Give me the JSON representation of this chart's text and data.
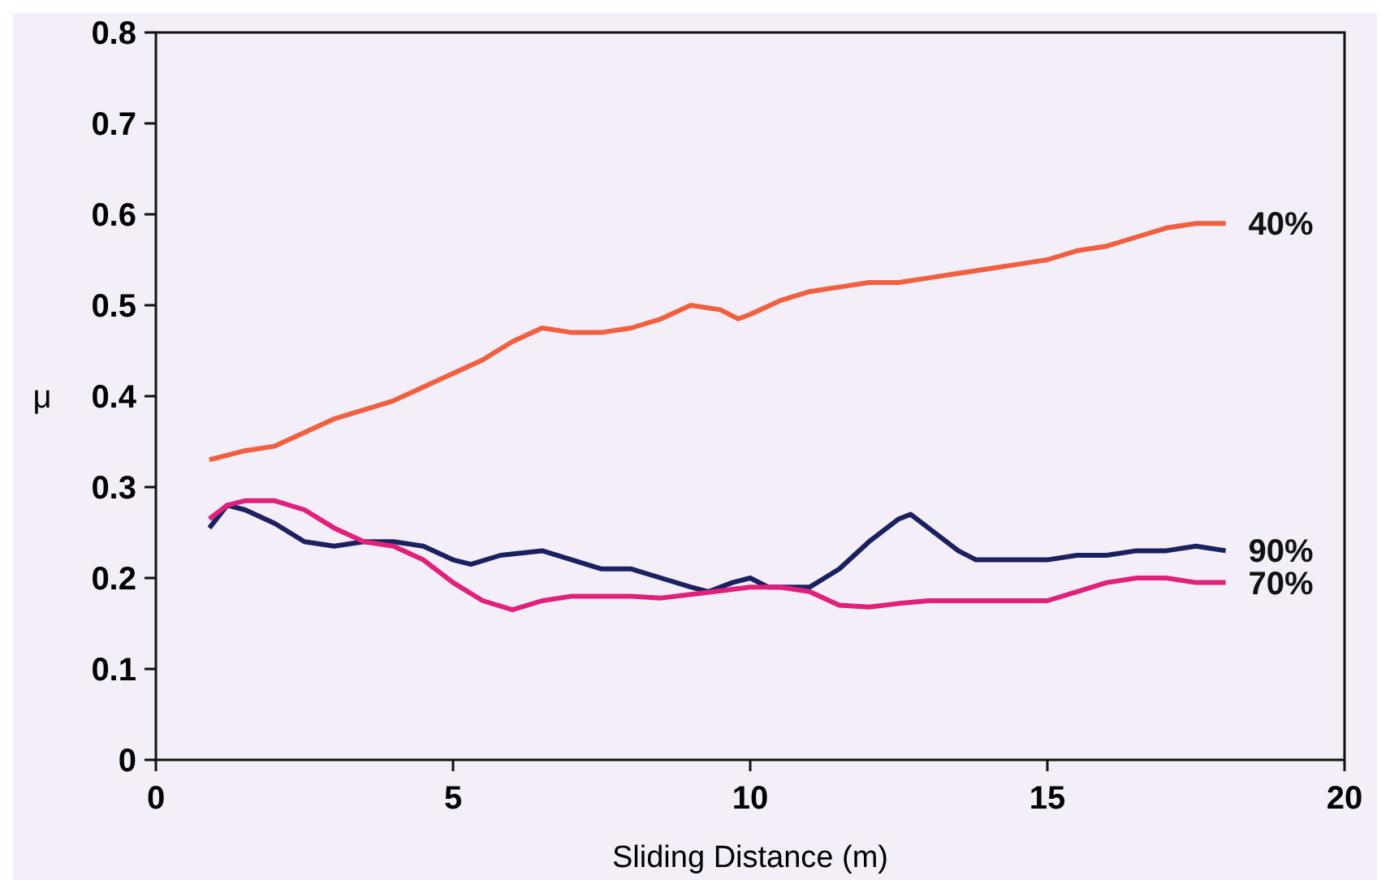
{
  "chart_data": {
    "type": "line",
    "xlabel": "Sliding Distance (m)",
    "ylabel": "μ",
    "xlim": [
      0,
      20
    ],
    "xticks": [
      0,
      5,
      10,
      15,
      20
    ],
    "ylim": [
      0,
      0.8
    ],
    "yticks": [
      0,
      0.1,
      0.2,
      0.3,
      0.4,
      0.5,
      0.6,
      0.7,
      0.8
    ],
    "grid": false,
    "legend": false,
    "marker": "none",
    "line_style": "solid",
    "series": [
      {
        "name": "40%",
        "color": "#f06040",
        "x": [
          0.9,
          1.5,
          2,
          2.5,
          3,
          3.5,
          4,
          4.5,
          5,
          5.5,
          6,
          6.5,
          7,
          7.5,
          8,
          8.5,
          9,
          9.5,
          9.8,
          10,
          10.5,
          11,
          11.5,
          12,
          12.5,
          13,
          13.5,
          14,
          14.5,
          15,
          15.5,
          16,
          16.5,
          17,
          17.5,
          18
        ],
        "values": [
          0.33,
          0.34,
          0.345,
          0.36,
          0.375,
          0.385,
          0.395,
          0.41,
          0.425,
          0.44,
          0.46,
          0.475,
          0.47,
          0.47,
          0.475,
          0.485,
          0.5,
          0.495,
          0.485,
          0.49,
          0.505,
          0.515,
          0.52,
          0.525,
          0.525,
          0.53,
          0.535,
          0.54,
          0.545,
          0.55,
          0.56,
          0.565,
          0.575,
          0.585,
          0.59,
          0.59
        ]
      },
      {
        "name": "90%",
        "color": "#1a2060",
        "x": [
          0.9,
          1.2,
          1.5,
          2,
          2.5,
          3,
          3.5,
          4,
          4.5,
          5,
          5.3,
          5.8,
          6.5,
          7,
          7.5,
          8,
          8.5,
          9,
          9.3,
          9.7,
          10,
          10.3,
          11,
          11.5,
          12,
          12.5,
          12.7,
          13,
          13.5,
          13.8,
          14.5,
          15,
          15.5,
          16,
          16.5,
          17,
          17.5,
          18
        ],
        "values": [
          0.255,
          0.28,
          0.275,
          0.26,
          0.24,
          0.235,
          0.24,
          0.24,
          0.235,
          0.22,
          0.215,
          0.225,
          0.23,
          0.22,
          0.21,
          0.21,
          0.2,
          0.19,
          0.185,
          0.195,
          0.2,
          0.19,
          0.19,
          0.21,
          0.24,
          0.265,
          0.27,
          0.255,
          0.23,
          0.22,
          0.22,
          0.22,
          0.225,
          0.225,
          0.23,
          0.23,
          0.235,
          0.23
        ]
      },
      {
        "name": "70%",
        "color": "#e0207a",
        "x": [
          0.9,
          1.2,
          1.5,
          2,
          2.5,
          3,
          3.5,
          4,
          4.5,
          5,
          5.5,
          6,
          6.5,
          7,
          7.5,
          8,
          8.5,
          9,
          9.5,
          10,
          10.5,
          11,
          11.5,
          12,
          12.5,
          13,
          14,
          15,
          15.5,
          16,
          16.5,
          17,
          17.5,
          18
        ],
        "values": [
          0.265,
          0.28,
          0.285,
          0.285,
          0.275,
          0.255,
          0.24,
          0.235,
          0.22,
          0.195,
          0.175,
          0.165,
          0.175,
          0.18,
          0.18,
          0.18,
          0.178,
          0.182,
          0.186,
          0.19,
          0.19,
          0.185,
          0.17,
          0.168,
          0.172,
          0.175,
          0.175,
          0.175,
          0.185,
          0.195,
          0.2,
          0.2,
          0.195,
          0.195
        ]
      }
    ]
  }
}
